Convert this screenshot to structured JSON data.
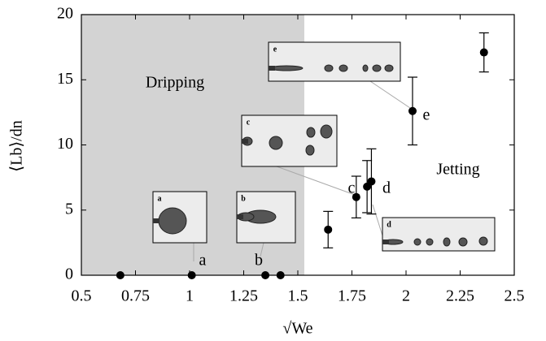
{
  "chart_data": {
    "type": "scatter",
    "x_label": "√We",
    "y_label": "⟨Lb⟩/dn",
    "xlim": [
      0.5,
      2.5
    ],
    "xticks": [
      0.5,
      0.75,
      1,
      1.25,
      1.5,
      1.75,
      2,
      2.25,
      2.5
    ],
    "ylim": [
      0,
      20
    ],
    "yticks": [
      0,
      5,
      10,
      15,
      20
    ],
    "series": [
      {
        "color": "#000000",
        "x": [
          0.68,
          1.01,
          1.35,
          1.42,
          1.64,
          1.77,
          1.82,
          1.84,
          2.03,
          2.36
        ],
        "values": [
          0,
          0,
          0,
          0,
          3.5,
          6.0,
          6.8,
          7.2,
          12.6,
          17.1
        ],
        "errors": [
          null,
          null,
          null,
          null,
          1.4,
          1.6,
          2.0,
          2.5,
          2.6,
          1.5
        ]
      }
    ],
    "regions": [
      {
        "label": "Dripping",
        "xlim": [
          0.5,
          1.53
        ],
        "color": "#d3d3d3"
      }
    ],
    "annotations": [
      "Jetting"
    ],
    "point_labels": [
      "a",
      "b",
      "c",
      "d",
      "e"
    ],
    "insets": [
      "a",
      "b",
      "c",
      "d",
      "e"
    ]
  }
}
